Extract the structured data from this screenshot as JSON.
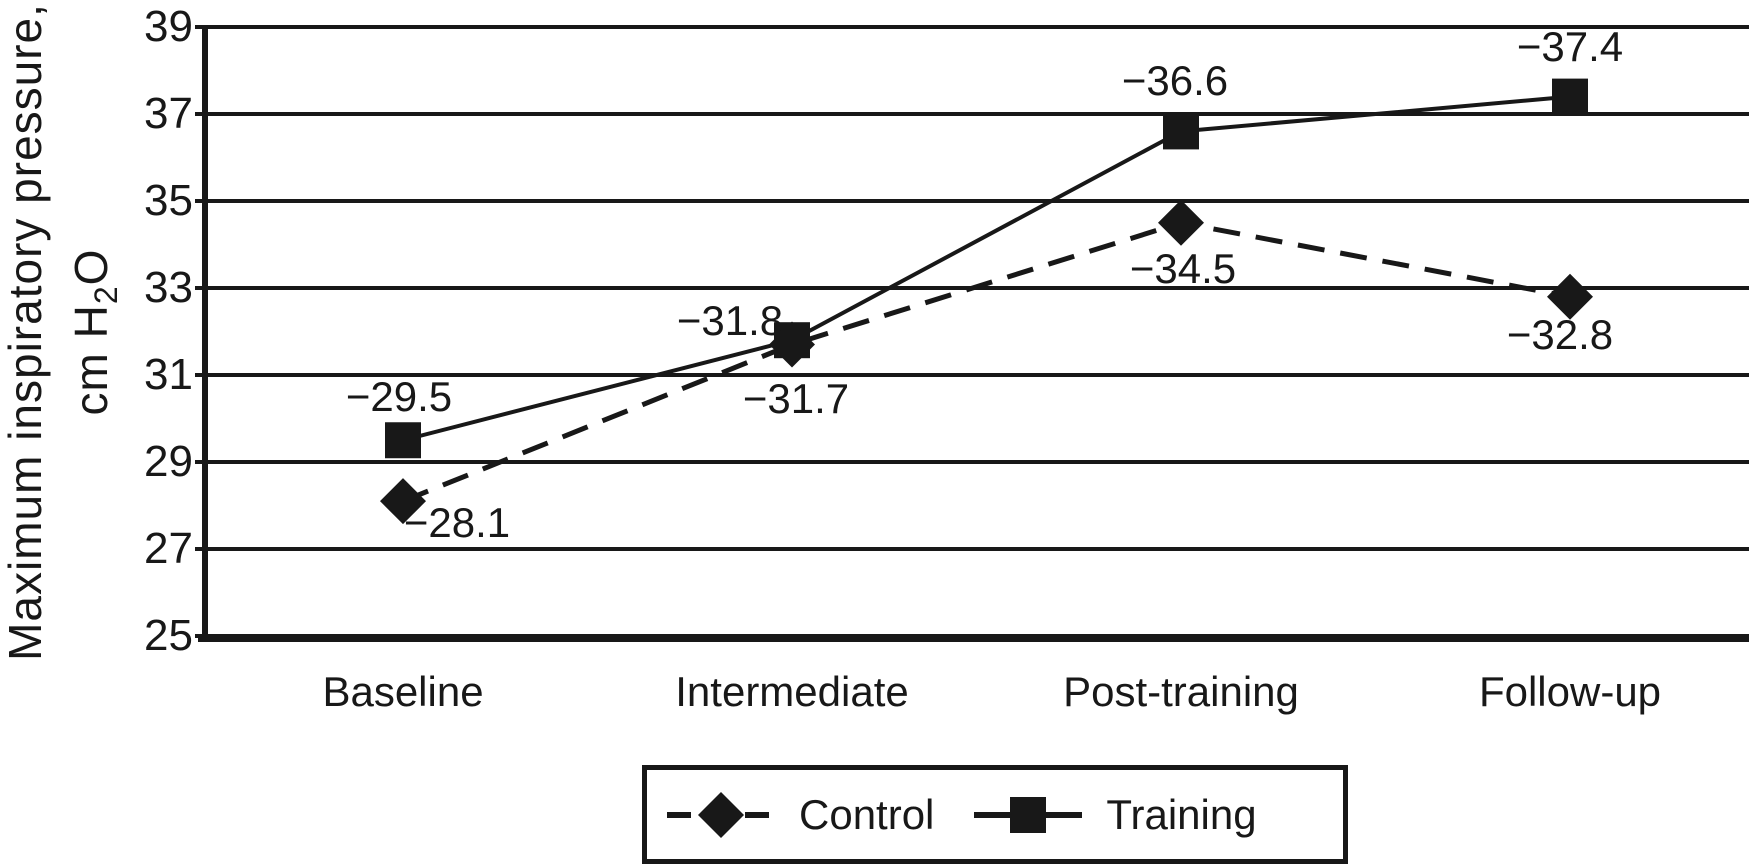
{
  "chart_data": {
    "type": "line",
    "title": "",
    "ylabel_line1": "Maximum inspiratory pressure,",
    "ylabel_line2_prefix": "cm H",
    "ylabel_line2_sub": "2",
    "ylabel_line2_suffix": "O",
    "categories": [
      "Baseline",
      "Intermediate",
      "Post-training",
      "Follow-up"
    ],
    "series": [
      {
        "name": "Control",
        "marker": "diamond",
        "line_style": "dashed",
        "values": [
          -28.1,
          -31.7,
          -34.5,
          -32.8
        ],
        "labels": [
          "−28.1",
          "−31.7",
          "−34.5",
          "−32.8"
        ],
        "label_offsets": [
          [
            54,
            22
          ],
          [
            4,
            54
          ],
          [
            2,
            46
          ],
          [
            -10,
            38
          ]
        ]
      },
      {
        "name": "Training",
        "marker": "square",
        "line_style": "solid",
        "values": [
          -29.5,
          -31.8,
          -36.6,
          -37.4
        ],
        "labels": [
          "−29.5",
          "−31.8",
          "−36.6",
          "−37.4"
        ],
        "label_offsets": [
          [
            -4,
            -43
          ],
          [
            -62,
            -19
          ],
          [
            -6,
            -50
          ],
          [
            0,
            -50
          ]
        ]
      }
    ],
    "y_axis": {
      "min": 25,
      "max": 39,
      "step": 2,
      "tick_labels": [
        "39",
        "37",
        "35",
        "33",
        "31",
        "29",
        "27",
        "25"
      ]
    },
    "x_axis": {
      "tick_labels": [
        "Baseline",
        "Intermediate",
        "Post-training",
        "Follow-up"
      ]
    },
    "grid": true,
    "legend_position": "bottom",
    "color": "#181818"
  }
}
